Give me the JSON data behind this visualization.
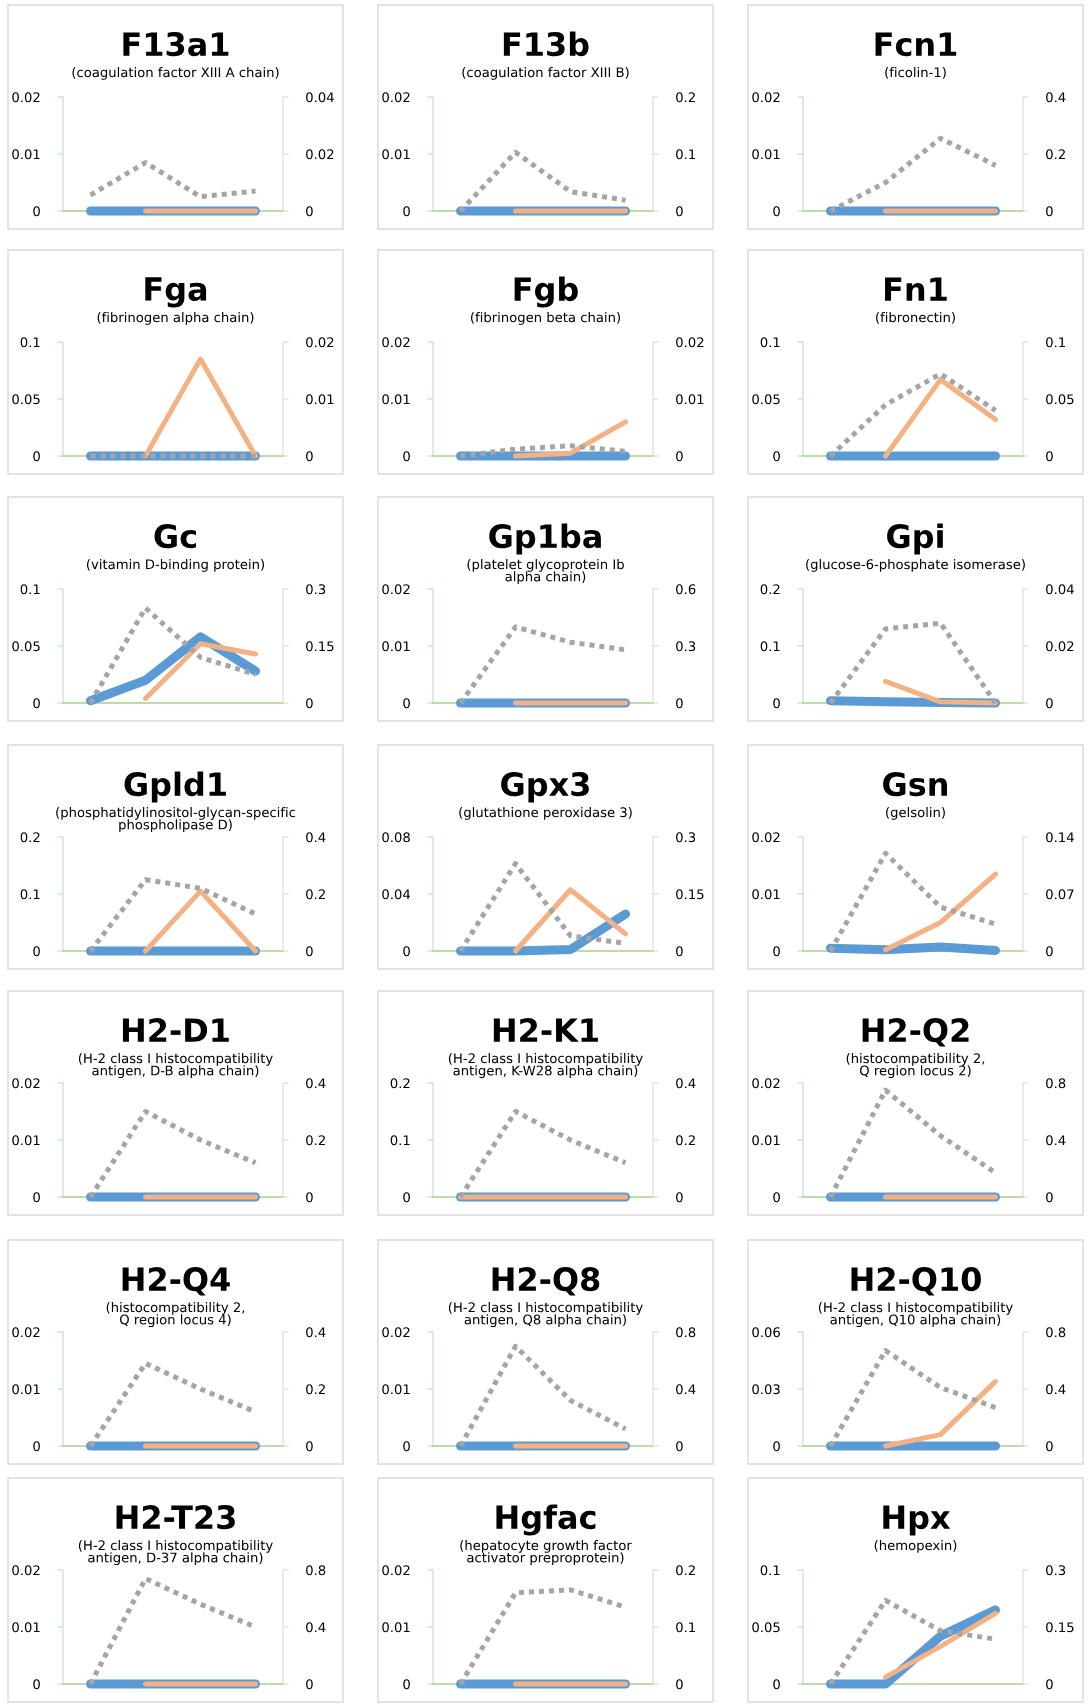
{
  "chart_data": [
    {
      "type": "line",
      "title": "F13a1",
      "subtitle": "(coagulation factor XIII A chain)",
      "categories": [
        null,
        null,
        null,
        null
      ],
      "ylim": [
        0,
        0.02
      ],
      "yticks": [
        0,
        0.01,
        0.02
      ],
      "y2lim": [
        0,
        0.04
      ],
      "y2ticks": [
        0,
        0.02,
        0.04
      ],
      "grid": false,
      "legend": false,
      "series": [
        {
          "color": "#5b9bd5",
          "values": [
            0,
            0,
            0,
            0
          ]
        },
        {
          "color": "#f4b183",
          "values": [
            null,
            0,
            0,
            0
          ]
        },
        {
          "color": "#a5a5a5",
          "axis": "y2",
          "line_style": "dotted",
          "values": [
            0.0056,
            0.017,
            0.005,
            0.007
          ]
        }
      ]
    },
    {
      "type": "line",
      "title": "F13b",
      "subtitle": "(coagulation factor XIII B)",
      "categories": [
        null,
        null,
        null,
        null
      ],
      "ylim": [
        0,
        0.02
      ],
      "yticks": [
        0,
        0.01,
        0.02
      ],
      "y2lim": [
        0,
        0.2
      ],
      "y2ticks": [
        0,
        0.1,
        0.2
      ],
      "grid": false,
      "legend": false,
      "series": [
        {
          "color": "#5b9bd5",
          "values": [
            0,
            0,
            0,
            0
          ]
        },
        {
          "color": "#f4b183",
          "values": [
            null,
            0,
            0,
            0
          ]
        },
        {
          "color": "#a5a5a5",
          "axis": "y2",
          "line_style": "dotted",
          "values": [
            0,
            0.103,
            0.034,
            0.019
          ]
        }
      ]
    },
    {
      "type": "line",
      "title": "Fcn1",
      "subtitle": "(ficolin-1)",
      "categories": [
        null,
        null,
        null,
        null
      ],
      "ylim": [
        0,
        0.02
      ],
      "yticks": [
        0,
        0.01,
        0.02
      ],
      "y2lim": [
        0,
        0.4
      ],
      "y2ticks": [
        0,
        0.2,
        0.4
      ],
      "grid": false,
      "legend": false,
      "series": [
        {
          "color": "#5b9bd5",
          "values": [
            0,
            0,
            0,
            0
          ]
        },
        {
          "color": "#f4b183",
          "values": [
            null,
            0,
            0,
            0
          ]
        },
        {
          "color": "#a5a5a5",
          "axis": "y2",
          "line_style": "dotted",
          "values": [
            0,
            0.1,
            0.255,
            0.16
          ]
        }
      ]
    },
    {
      "type": "line",
      "title": "Fga",
      "subtitle": "(fibrinogen alpha chain)",
      "categories": [
        null,
        null,
        null,
        null
      ],
      "ylim": [
        0,
        0.1
      ],
      "yticks": [
        0,
        0.05,
        0.1
      ],
      "y2lim": [
        0,
        0.02
      ],
      "y2ticks": [
        0,
        0.01,
        0.02
      ],
      "grid": false,
      "legend": false,
      "series": [
        {
          "color": "#5b9bd5",
          "values": [
            0,
            0,
            0,
            0
          ]
        },
        {
          "color": "#f4b183",
          "values": [
            null,
            0,
            0.085,
            0
          ]
        },
        {
          "color": "#a5a5a5",
          "axis": "y2",
          "line_style": "dotted",
          "values": [
            0,
            0,
            0,
            0
          ]
        }
      ]
    },
    {
      "type": "line",
      "title": "Fgb",
      "subtitle": "(fibrinogen beta chain)",
      "categories": [
        null,
        null,
        null,
        null
      ],
      "ylim": [
        0,
        0.02
      ],
      "yticks": [
        0,
        0.01,
        0.02
      ],
      "y2lim": [
        0,
        0.02
      ],
      "y2ticks": [
        0,
        0.01,
        0.02
      ],
      "grid": false,
      "legend": false,
      "series": [
        {
          "color": "#5b9bd5",
          "values": [
            0,
            0,
            0,
            0
          ]
        },
        {
          "color": "#f4b183",
          "values": [
            null,
            0,
            0.0005,
            0.006
          ]
        },
        {
          "color": "#a5a5a5",
          "axis": "y2",
          "line_style": "dotted",
          "values": [
            0,
            0.0012,
            0.0018,
            0.0008
          ]
        }
      ]
    },
    {
      "type": "line",
      "title": "Fn1",
      "subtitle": "(fibronectin)",
      "categories": [
        null,
        null,
        null,
        null
      ],
      "ylim": [
        0,
        0.1
      ],
      "yticks": [
        0,
        0.05,
        0.1
      ],
      "y2lim": [
        0,
        0.1
      ],
      "y2ticks": [
        0,
        0.05,
        0.1
      ],
      "grid": false,
      "legend": false,
      "series": [
        {
          "color": "#5b9bd5",
          "values": [
            0,
            0,
            0,
            0
          ]
        },
        {
          "color": "#f4b183",
          "values": [
            null,
            0,
            0.067,
            0.032
          ]
        },
        {
          "color": "#a5a5a5",
          "axis": "y2",
          "line_style": "dotted",
          "values": [
            0,
            0.045,
            0.072,
            0.04
          ]
        }
      ]
    },
    {
      "type": "line",
      "title": "Gc",
      "subtitle": "(vitamin D-binding protein)",
      "categories": [
        null,
        null,
        null,
        null
      ],
      "ylim": [
        0,
        0.1
      ],
      "yticks": [
        0,
        0.05,
        0.1
      ],
      "y2lim": [
        0,
        0.3
      ],
      "y2ticks": [
        0,
        0.15,
        0.3
      ],
      "grid": false,
      "legend": false,
      "series": [
        {
          "color": "#5b9bd5",
          "values": [
            0.002,
            0.02,
            0.058,
            0.028
          ]
        },
        {
          "color": "#f4b183",
          "values": [
            null,
            0.004,
            0.052,
            0.043
          ]
        },
        {
          "color": "#a5a5a5",
          "axis": "y2",
          "line_style": "dotted",
          "values": [
            0,
            0.25,
            0.12,
            0.075
          ]
        }
      ]
    },
    {
      "type": "line",
      "title": "Gp1ba",
      "subtitle": "(platelet glycoprotein Ib\nalpha chain)",
      "categories": [
        null,
        null,
        null,
        null
      ],
      "ylim": [
        0,
        0.02
      ],
      "yticks": [
        0,
        0.01,
        0.02
      ],
      "y2lim": [
        0,
        0.6
      ],
      "y2ticks": [
        0,
        0.3,
        0.6
      ],
      "grid": false,
      "legend": false,
      "series": [
        {
          "color": "#5b9bd5",
          "values": [
            0,
            0,
            0,
            0
          ]
        },
        {
          "color": "#f4b183",
          "values": [
            null,
            0,
            0,
            0
          ]
        },
        {
          "color": "#a5a5a5",
          "axis": "y2",
          "line_style": "dotted",
          "values": [
            0,
            0.4,
            0.32,
            0.28
          ]
        }
      ]
    },
    {
      "type": "line",
      "title": "Gpi",
      "subtitle": "(glucose-6-phosphate isomerase)",
      "categories": [
        null,
        null,
        null,
        null
      ],
      "ylim": [
        0,
        0.2
      ],
      "yticks": [
        0,
        0.1,
        0.2
      ],
      "y2lim": [
        0,
        0.04
      ],
      "y2ticks": [
        0,
        0.02,
        0.04
      ],
      "grid": false,
      "legend": false,
      "series": [
        {
          "color": "#5b9bd5",
          "values": [
            0.004,
            0.002,
            0.001,
            0
          ]
        },
        {
          "color": "#f4b183",
          "values": [
            null,
            0.038,
            0.002,
            0
          ]
        },
        {
          "color": "#a5a5a5",
          "axis": "y2",
          "line_style": "dotted",
          "values": [
            0,
            0.026,
            0.028,
            0
          ]
        }
      ]
    },
    {
      "type": "line",
      "title": "Gpld1",
      "subtitle": "(phosphatidylinositol-glycan-specific\nphospholipase D)",
      "categories": [
        null,
        null,
        null,
        null
      ],
      "ylim": [
        0,
        0.2
      ],
      "yticks": [
        0,
        0.1,
        0.2
      ],
      "y2lim": [
        0,
        0.4
      ],
      "y2ticks": [
        0,
        0.2,
        0.4
      ],
      "grid": false,
      "legend": false,
      "series": [
        {
          "color": "#5b9bd5",
          "values": [
            0,
            0,
            0,
            0
          ]
        },
        {
          "color": "#f4b183",
          "values": [
            null,
            0,
            0.105,
            0
          ]
        },
        {
          "color": "#a5a5a5",
          "axis": "y2",
          "line_style": "dotted",
          "values": [
            0,
            0.25,
            0.22,
            0.13
          ]
        }
      ]
    },
    {
      "type": "line",
      "title": "Gpx3",
      "subtitle": "(glutathione peroxidase 3)",
      "categories": [
        null,
        null,
        null,
        null
      ],
      "ylim": [
        0,
        0.08
      ],
      "yticks": [
        0,
        0.04,
        0.08
      ],
      "y2lim": [
        0,
        0.3
      ],
      "y2ticks": [
        0,
        0.15,
        0.3
      ],
      "grid": false,
      "legend": false,
      "series": [
        {
          "color": "#5b9bd5",
          "values": [
            0,
            0,
            0.001,
            0.026
          ]
        },
        {
          "color": "#f4b183",
          "values": [
            null,
            0,
            0.043,
            0.012
          ]
        },
        {
          "color": "#a5a5a5",
          "axis": "y2",
          "line_style": "dotted",
          "values": [
            0,
            0.23,
            0.04,
            0.02
          ]
        }
      ]
    },
    {
      "type": "line",
      "title": "Gsn",
      "subtitle": "(gelsolin)",
      "categories": [
        null,
        null,
        null,
        null
      ],
      "ylim": [
        0,
        0.02
      ],
      "yticks": [
        0,
        0.01,
        0.02
      ],
      "y2lim": [
        0,
        0.14
      ],
      "y2ticks": [
        0,
        0.07,
        0.14
      ],
      "grid": false,
      "legend": false,
      "series": [
        {
          "color": "#5b9bd5",
          "values": [
            0.0005,
            0.0002,
            0.0007,
            0.0001
          ]
        },
        {
          "color": "#f4b183",
          "values": [
            null,
            0.0002,
            0.005,
            0.0135
          ]
        },
        {
          "color": "#a5a5a5",
          "axis": "y2",
          "line_style": "dotted",
          "values": [
            0,
            0.12,
            0.054,
            0.033
          ]
        }
      ]
    },
    {
      "type": "line",
      "title": "H2-D1",
      "subtitle": "(H-2 class I histocompatibility\nantigen, D-B alpha chain)",
      "categories": [
        null,
        null,
        null,
        null
      ],
      "ylim": [
        0,
        0.02
      ],
      "yticks": [
        0,
        0.01,
        0.02
      ],
      "y2lim": [
        0,
        0.4
      ],
      "y2ticks": [
        0,
        0.2,
        0.4
      ],
      "grid": false,
      "legend": false,
      "series": [
        {
          "color": "#5b9bd5",
          "values": [
            0,
            0,
            0,
            0
          ]
        },
        {
          "color": "#f4b183",
          "values": [
            null,
            0,
            0,
            0
          ]
        },
        {
          "color": "#a5a5a5",
          "axis": "y2",
          "line_style": "dotted",
          "values": [
            0,
            0.3,
            0.2,
            0.12
          ]
        }
      ]
    },
    {
      "type": "line",
      "title": "H2-K1",
      "subtitle": "(H-2 class I histocompatibility\nantigen, K-W28 alpha chain)",
      "categories": [
        null,
        null,
        null,
        null
      ],
      "ylim": [
        0,
        0.2
      ],
      "yticks": [
        0,
        0.1,
        0.2
      ],
      "y2lim": [
        0,
        0.4
      ],
      "y2ticks": [
        0,
        0.2,
        0.4
      ],
      "grid": false,
      "legend": false,
      "series": [
        {
          "color": "#5b9bd5",
          "values": [
            0,
            0,
            0,
            0
          ]
        },
        {
          "color": "#f4b183",
          "values": [
            0,
            0,
            0,
            0
          ]
        },
        {
          "color": "#a5a5a5",
          "axis": "y2",
          "line_style": "dotted",
          "values": [
            0,
            0.3,
            0.2,
            0.12
          ]
        }
      ]
    },
    {
      "type": "line",
      "title": "H2-Q2",
      "subtitle": "(histocompatibility 2,\nQ region locus 2)",
      "categories": [
        null,
        null,
        null,
        null
      ],
      "ylim": [
        0,
        0.02
      ],
      "yticks": [
        0,
        0.01,
        0.02
      ],
      "y2lim": [
        0,
        0.8
      ],
      "y2ticks": [
        0,
        0.4,
        0.8
      ],
      "grid": false,
      "legend": false,
      "series": [
        {
          "color": "#5b9bd5",
          "values": [
            0,
            0,
            0,
            0
          ]
        },
        {
          "color": "#f4b183",
          "values": [
            null,
            0,
            0,
            0
          ]
        },
        {
          "color": "#a5a5a5",
          "axis": "y2",
          "line_style": "dotted",
          "values": [
            0,
            0.75,
            0.43,
            0.17
          ]
        }
      ]
    },
    {
      "type": "line",
      "title": "H2-Q4",
      "subtitle": "(histocompatibility 2,\nQ region locus 4)",
      "categories": [
        null,
        null,
        null,
        null
      ],
      "ylim": [
        0,
        0.02
      ],
      "yticks": [
        0,
        0.01,
        0.02
      ],
      "y2lim": [
        0,
        0.4
      ],
      "y2ticks": [
        0,
        0.2,
        0.4
      ],
      "grid": false,
      "legend": false,
      "series": [
        {
          "color": "#5b9bd5",
          "values": [
            0,
            0,
            0,
            0
          ]
        },
        {
          "color": "#f4b183",
          "values": [
            null,
            0,
            0,
            0
          ]
        },
        {
          "color": "#a5a5a5",
          "axis": "y2",
          "line_style": "dotted",
          "values": [
            0,
            0.29,
            0.2,
            0.12
          ]
        }
      ]
    },
    {
      "type": "line",
      "title": "H2-Q8",
      "subtitle": "(H-2 class I histocompatibility\nantigen, Q8 alpha chain)",
      "categories": [
        null,
        null,
        null,
        null
      ],
      "ylim": [
        0,
        0.02
      ],
      "yticks": [
        0,
        0.01,
        0.02
      ],
      "y2lim": [
        0,
        0.8
      ],
      "y2ticks": [
        0,
        0.4,
        0.8
      ],
      "grid": false,
      "legend": false,
      "series": [
        {
          "color": "#5b9bd5",
          "values": [
            0,
            0,
            0,
            0
          ]
        },
        {
          "color": "#f4b183",
          "values": [
            null,
            0,
            0,
            0
          ]
        },
        {
          "color": "#a5a5a5",
          "axis": "y2",
          "line_style": "dotted",
          "values": [
            0,
            0.7,
            0.32,
            0.12
          ]
        }
      ]
    },
    {
      "type": "line",
      "title": "H2-Q10",
      "subtitle": "(H-2 class I histocompatibility\nantigen, Q10 alpha chain)",
      "categories": [
        null,
        null,
        null,
        null
      ],
      "ylim": [
        0,
        0.06
      ],
      "yticks": [
        0,
        0.03,
        0.06
      ],
      "y2lim": [
        0,
        0.8
      ],
      "y2ticks": [
        0,
        0.4,
        0.8
      ],
      "grid": false,
      "legend": false,
      "series": [
        {
          "color": "#5b9bd5",
          "values": [
            0,
            0,
            0,
            0
          ]
        },
        {
          "color": "#f4b183",
          "values": [
            null,
            0,
            0.006,
            0.034
          ]
        },
        {
          "color": "#a5a5a5",
          "axis": "y2",
          "line_style": "dotted",
          "values": [
            0,
            0.67,
            0.41,
            0.27
          ]
        }
      ]
    },
    {
      "type": "line",
      "title": "H2-T23",
      "subtitle": "(H-2 class I histocompatibility\nantigen, D-37 alpha chain)",
      "categories": [
        null,
        null,
        null,
        null
      ],
      "ylim": [
        0,
        0.02
      ],
      "yticks": [
        0,
        0.01,
        0.02
      ],
      "y2lim": [
        0,
        0.8
      ],
      "y2ticks": [
        0,
        0.4,
        0.8
      ],
      "grid": false,
      "legend": false,
      "series": [
        {
          "color": "#5b9bd5",
          "values": [
            0,
            0,
            0,
            0
          ]
        },
        {
          "color": "#f4b183",
          "values": [
            null,
            0,
            0,
            0
          ]
        },
        {
          "color": "#a5a5a5",
          "axis": "y2",
          "line_style": "dotted",
          "values": [
            0,
            0.74,
            0.56,
            0.4
          ]
        }
      ]
    },
    {
      "type": "line",
      "title": "Hgfac",
      "subtitle": "(hepatocyte growth factor\nactivator preproprotein)",
      "categories": [
        null,
        null,
        null,
        null
      ],
      "ylim": [
        0,
        0.02
      ],
      "yticks": [
        0,
        0.01,
        0.02
      ],
      "y2lim": [
        0,
        0.2
      ],
      "y2ticks": [
        0,
        0.1,
        0.2
      ],
      "grid": false,
      "legend": false,
      "series": [
        {
          "color": "#5b9bd5",
          "values": [
            0,
            0,
            0,
            0
          ]
        },
        {
          "color": "#f4b183",
          "values": [
            null,
            0,
            0,
            0
          ]
        },
        {
          "color": "#a5a5a5",
          "axis": "y2",
          "line_style": "dotted",
          "values": [
            0,
            0.16,
            0.165,
            0.135
          ]
        }
      ]
    },
    {
      "type": "line",
      "title": "Hpx",
      "subtitle": "(hemopexin)",
      "categories": [
        null,
        null,
        null,
        null
      ],
      "ylim": [
        0,
        0.1
      ],
      "yticks": [
        0,
        0.05,
        0.1
      ],
      "y2lim": [
        0,
        0.3
      ],
      "y2ticks": [
        0,
        0.15,
        0.3
      ],
      "grid": false,
      "legend": false,
      "series": [
        {
          "color": "#5b9bd5",
          "values": [
            0,
            0,
            0.042,
            0.065
          ]
        },
        {
          "color": "#f4b183",
          "values": [
            null,
            0.006,
            0.033,
            0.062
          ]
        },
        {
          "color": "#a5a5a5",
          "axis": "y2",
          "line_style": "dotted",
          "values": [
            0,
            0.22,
            0.14,
            0.118
          ]
        }
      ]
    }
  ]
}
